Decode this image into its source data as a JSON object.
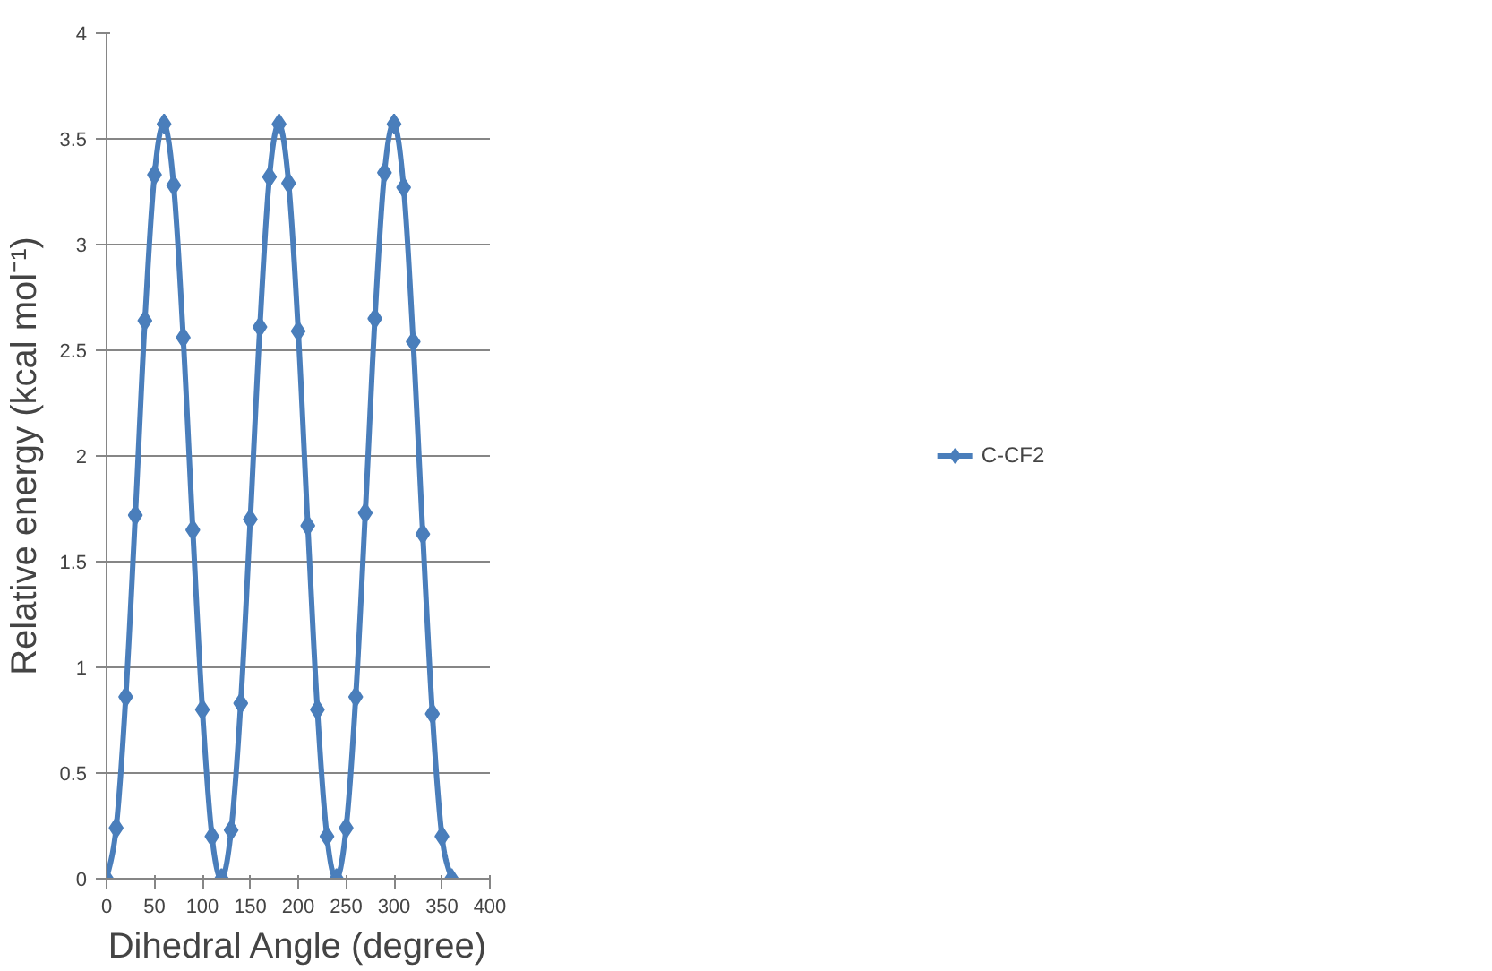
{
  "chart_data": {
    "type": "line",
    "xlabel": "Dihedral Angle (degree)",
    "ylabel": "Relative energy (kcal mol⁻¹)",
    "x": [
      0,
      10,
      20,
      30,
      40,
      50,
      60,
      70,
      80,
      90,
      100,
      110,
      120,
      130,
      140,
      150,
      160,
      170,
      180,
      190,
      200,
      210,
      220,
      230,
      240,
      250,
      260,
      270,
      280,
      290,
      300,
      310,
      320,
      330,
      340,
      350,
      360
    ],
    "series": [
      {
        "name": "C-CF2",
        "color": "#4a7ebb",
        "values": [
          0,
          0.24,
          0.86,
          1.72,
          2.64,
          3.33,
          3.57,
          3.28,
          2.56,
          1.65,
          0.8,
          0.2,
          0,
          0.23,
          0.83,
          1.7,
          2.61,
          3.32,
          3.57,
          3.29,
          2.59,
          1.67,
          0.8,
          0.2,
          0,
          0.24,
          0.86,
          1.73,
          2.65,
          3.34,
          3.57,
          3.27,
          2.54,
          1.63,
          0.78,
          0.2,
          0
        ]
      }
    ],
    "xlim": [
      0,
      400
    ],
    "xticks": [
      0,
      50,
      100,
      150,
      200,
      250,
      300,
      350,
      400
    ],
    "ylim": [
      0,
      4
    ],
    "yticks": [
      0,
      {
        "value": 0.5,
        "label": "0.5"
      },
      1,
      {
        "value": 1.5,
        "label": "1.5"
      },
      2,
      {
        "value": 2.5,
        "label": "2.5"
      },
      3,
      {
        "value": 3.5,
        "label": "3.5"
      },
      4
    ],
    "grid": "y",
    "legend": "right",
    "marker": "diamond",
    "line_style": "solid"
  }
}
